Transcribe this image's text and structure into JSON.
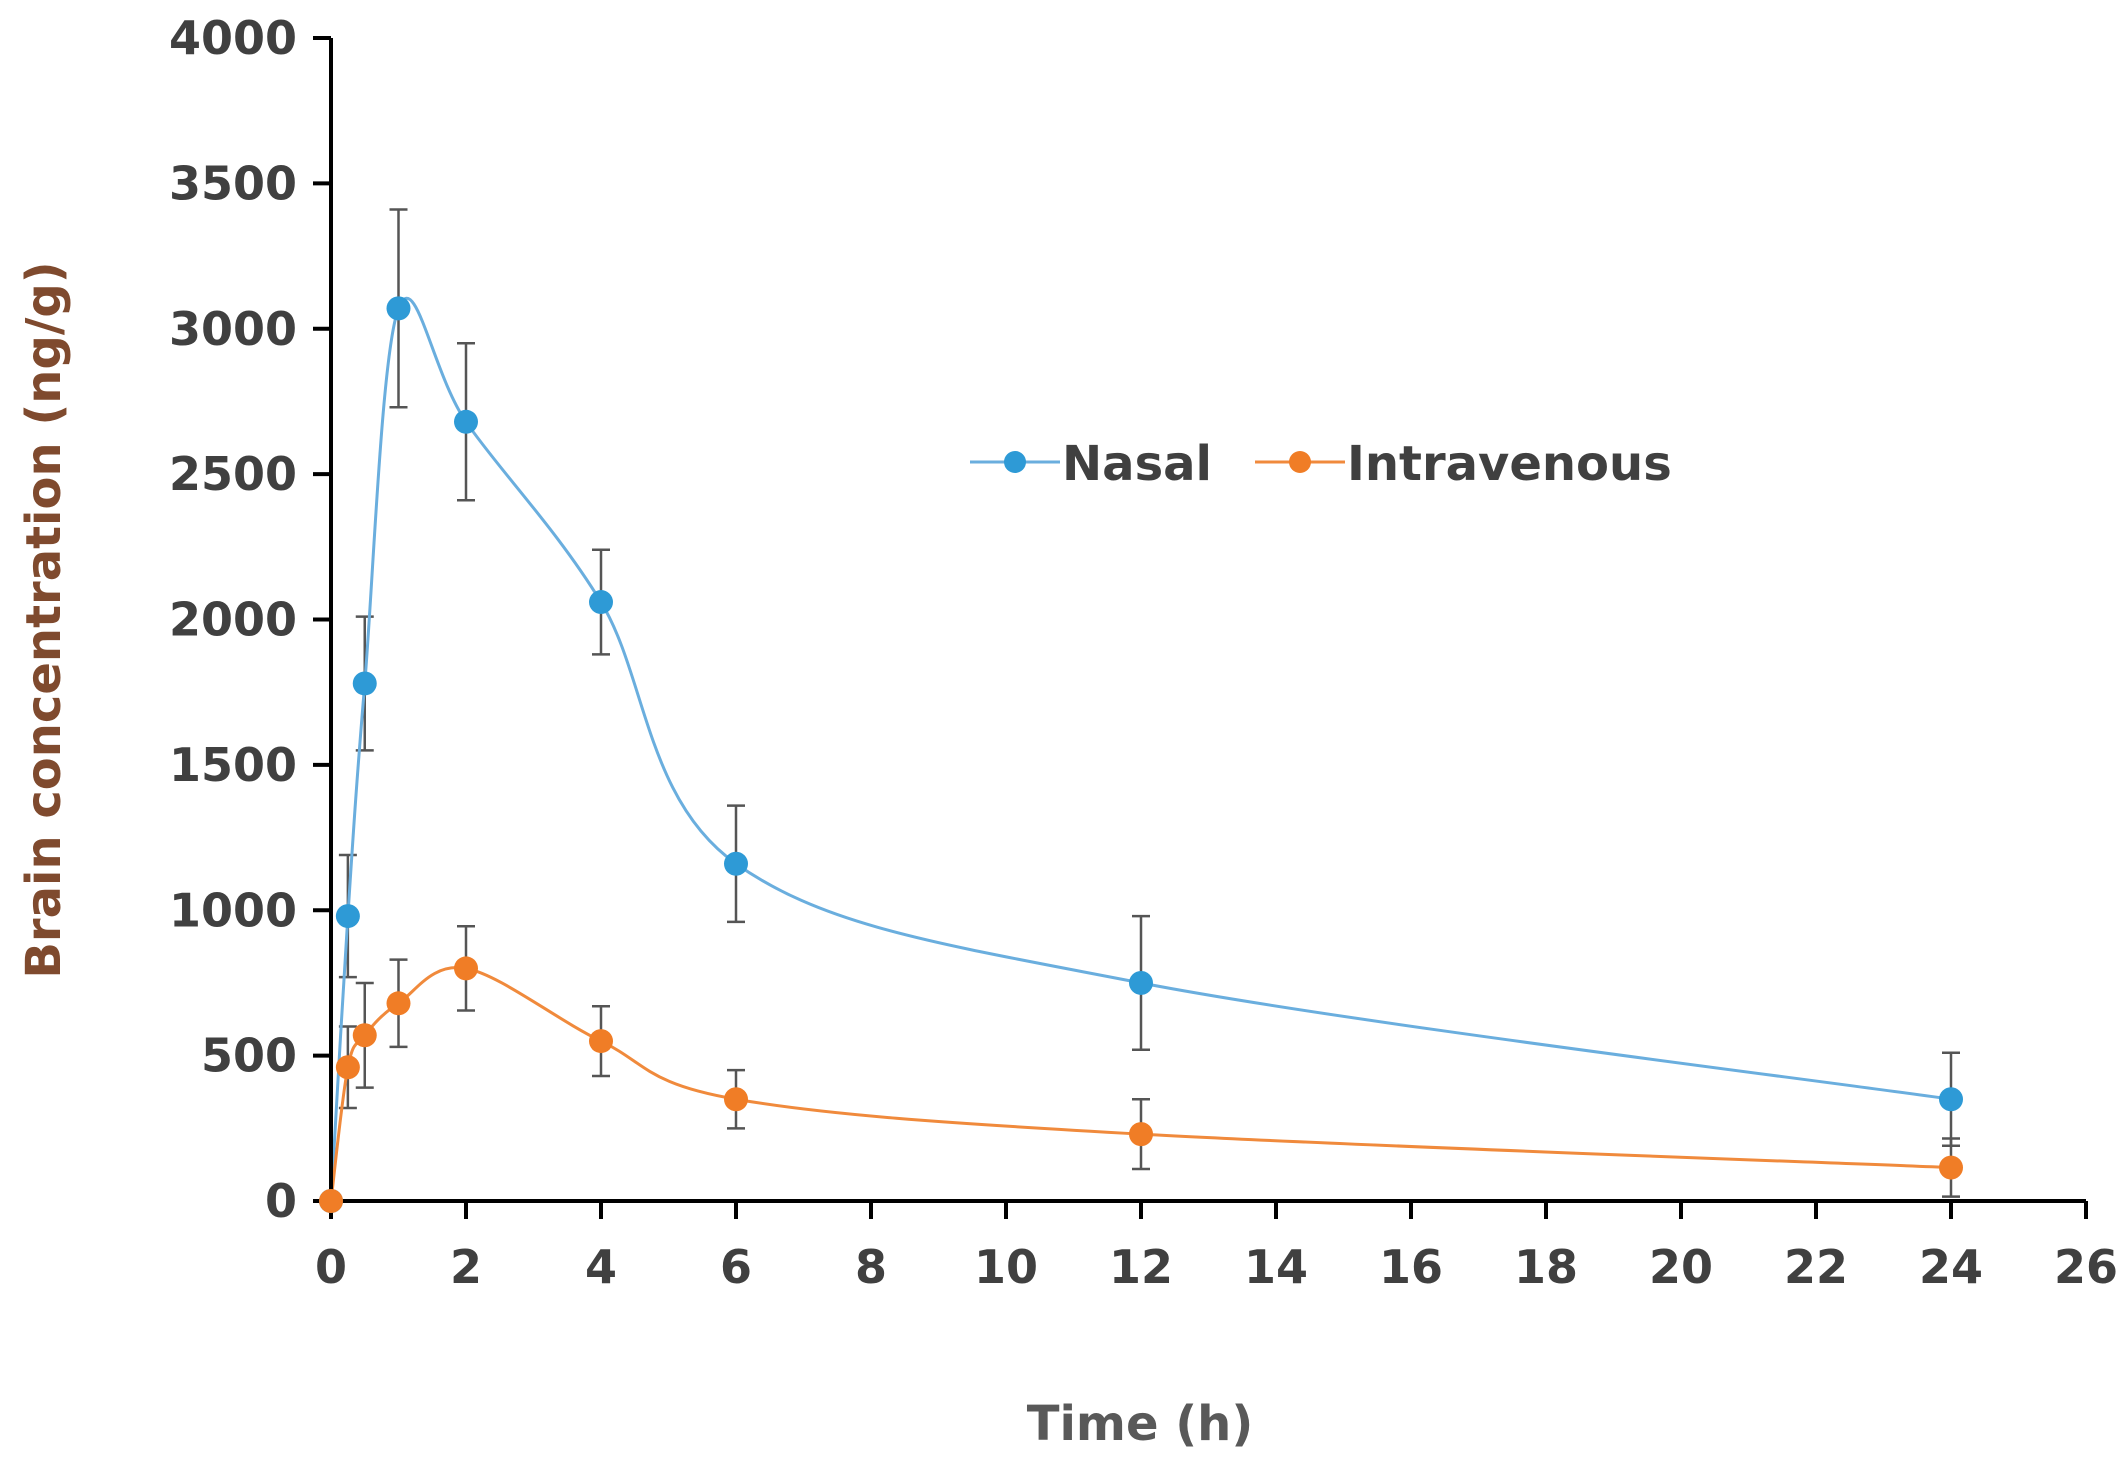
{
  "chart_data": {
    "type": "line",
    "title": "",
    "xlabel": "Time (h)",
    "ylabel": "Brain concentration (ng/g)",
    "xlim": [
      0,
      26
    ],
    "ylim": [
      0,
      4000
    ],
    "xticks": [
      0,
      2,
      4,
      6,
      8,
      10,
      12,
      14,
      16,
      18,
      20,
      22,
      24,
      26
    ],
    "yticks": [
      0,
      500,
      1000,
      1500,
      2000,
      2500,
      3000,
      3500,
      4000
    ],
    "grid": false,
    "legend_position": "top-right",
    "series": [
      {
        "name": "Nasal",
        "color": "#2e9ad6",
        "line_color": "#6aaede",
        "x": [
          0,
          0.25,
          0.5,
          1,
          2,
          4,
          6,
          12,
          24
        ],
        "y": [
          0,
          980,
          1780,
          3070,
          2680,
          2060,
          1160,
          750,
          350
        ],
        "error": [
          0,
          210,
          230,
          340,
          270,
          180,
          200,
          230,
          160
        ]
      },
      {
        "name": "Intravenous",
        "color": "#f07d26",
        "line_color": "#f08a3c",
        "x": [
          0,
          0.25,
          0.5,
          1,
          2,
          4,
          6,
          12,
          24
        ],
        "y": [
          0,
          460,
          570,
          680,
          800,
          550,
          350,
          230,
          115
        ],
        "error": [
          0,
          140,
          180,
          150,
          145,
          120,
          100,
          120,
          100
        ]
      }
    ]
  }
}
